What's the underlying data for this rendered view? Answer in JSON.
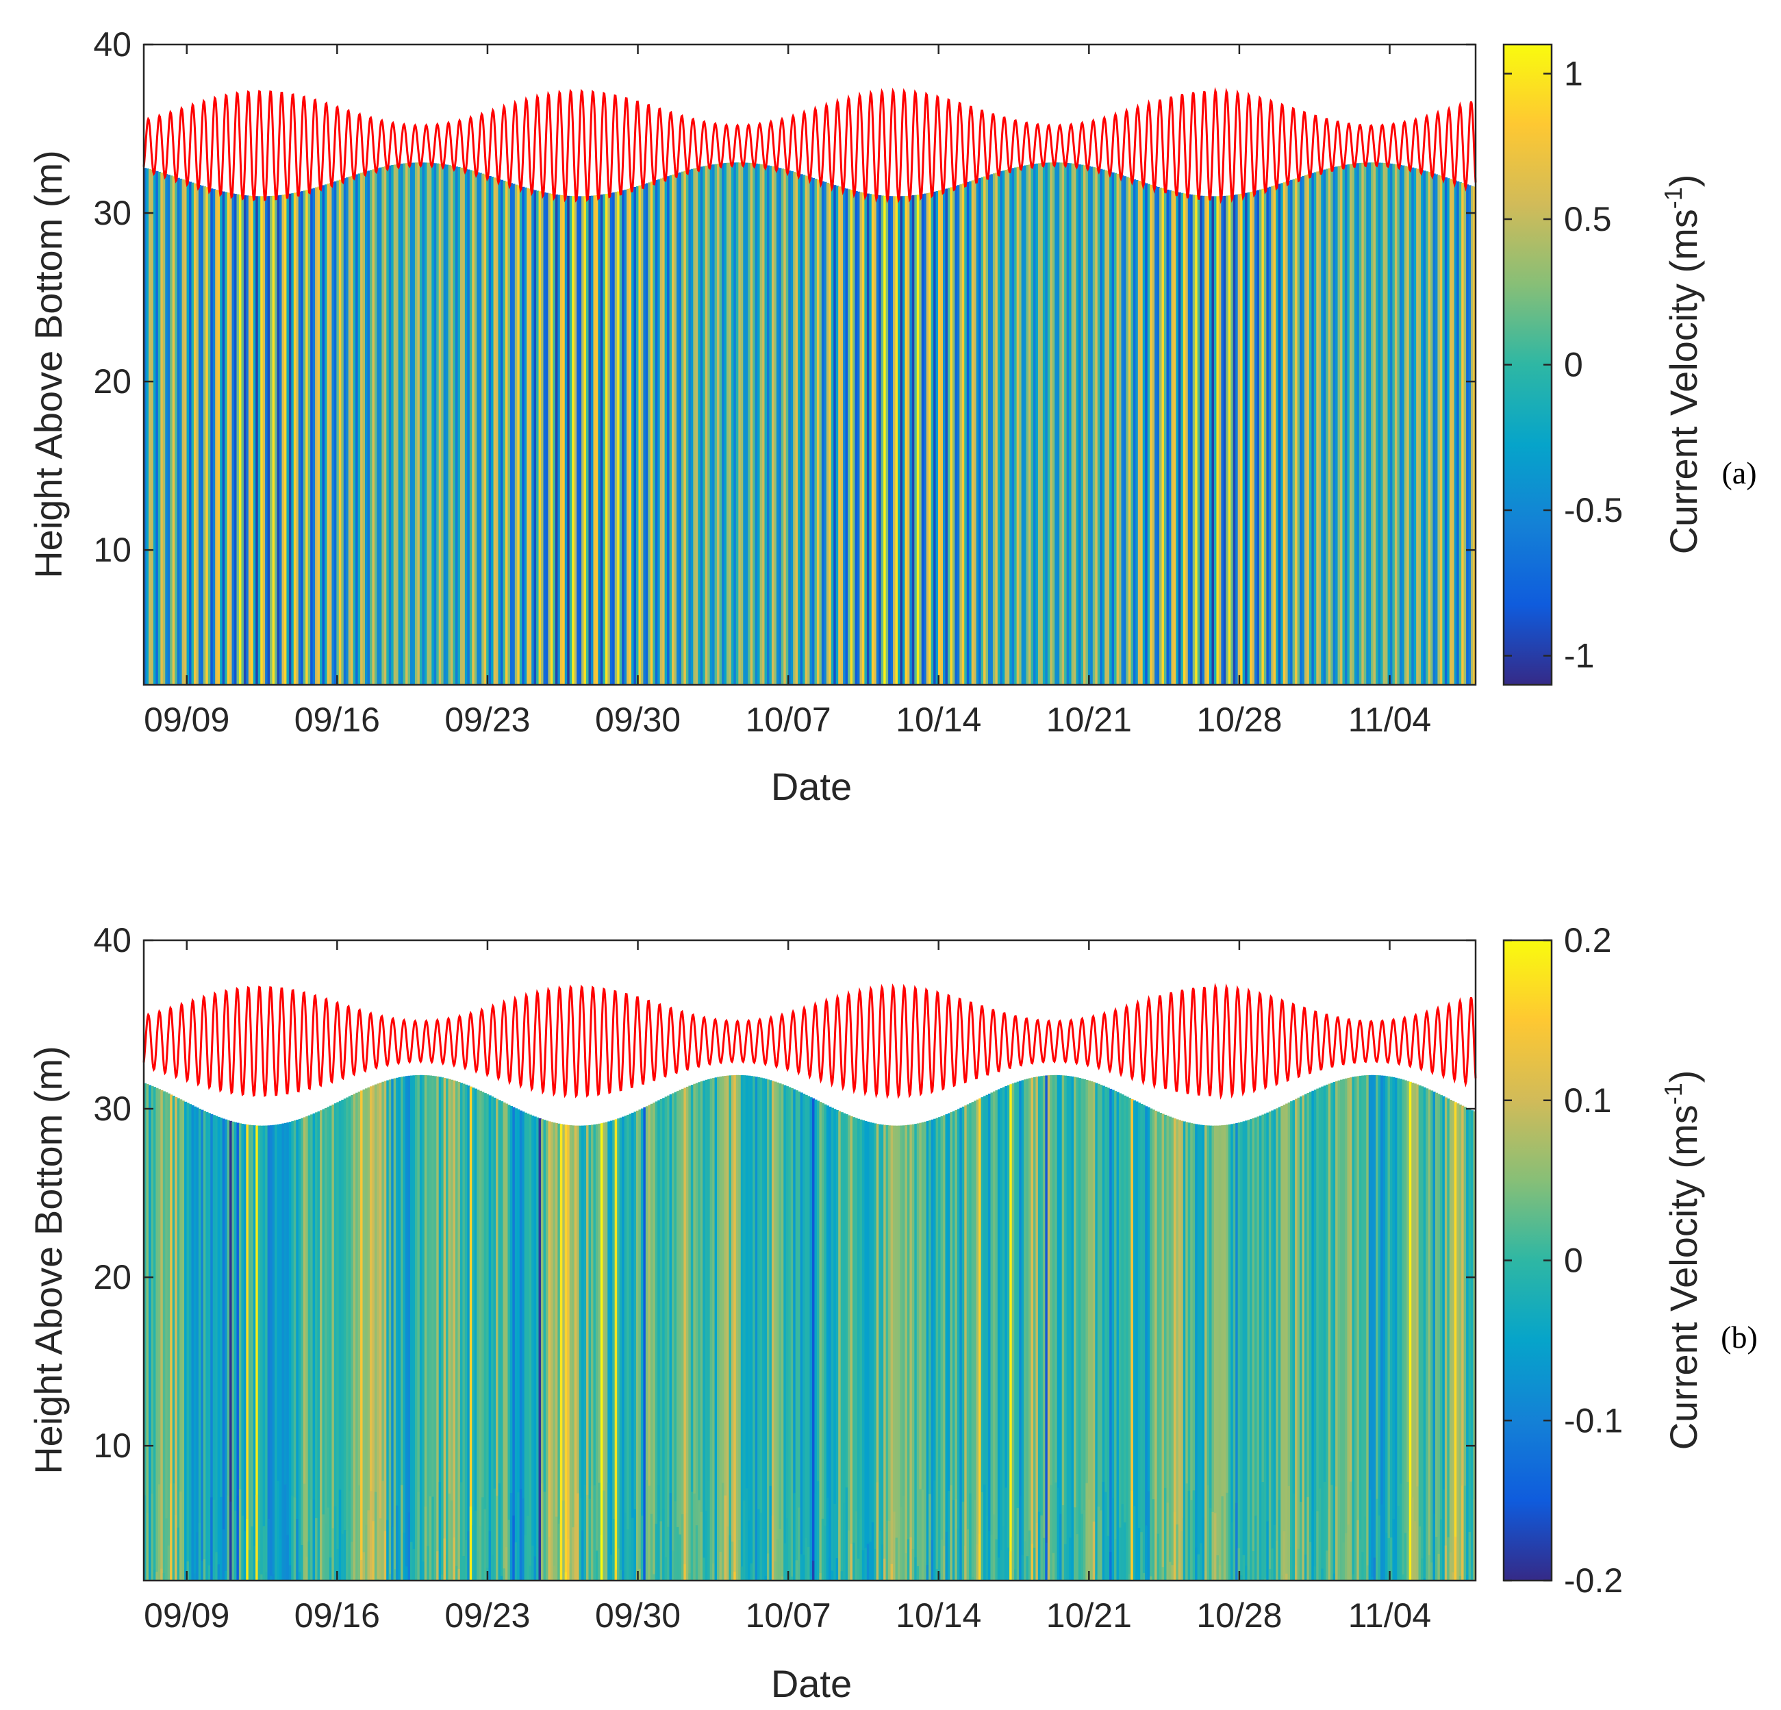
{
  "chart_data": [
    {
      "type": "heatmap",
      "panel_label": "(a)",
      "xlabel": "Date",
      "ylabel": "Height Above Bottom (m)",
      "xlim": [
        "09/07",
        "11/08"
      ],
      "ylim": [
        2,
        40
      ],
      "x_ticks": [
        "09/09",
        "09/16",
        "09/23",
        "09/30",
        "10/07",
        "10/14",
        "10/21",
        "10/28",
        "11/04"
      ],
      "y_ticks": [
        10,
        20,
        30,
        40
      ],
      "colorbar": {
        "label": "Current Velocity (ms",
        "label_superscript": "-1",
        "label_suffix": ")",
        "limits": [
          -1.1,
          1.1
        ],
        "ticks": [
          "-1",
          "-0.5",
          "0",
          "0.5",
          "1"
        ],
        "colormap": "parula"
      },
      "field": {
        "kind": "tidal",
        "amplitude_ms": 1.0,
        "period_hours": 12.42,
        "noise_ms": 0.05
      },
      "surface_line": {
        "color": "#ff0000",
        "mean_height_m": 34.0,
        "tidal_range_m": [
          2.4,
          6.5
        ],
        "spring_neap_period_days": 14.77
      },
      "bin_top_height_m": [
        33.0,
        31.0
      ]
    },
    {
      "type": "heatmap",
      "panel_label": "(b)",
      "xlabel": "Date",
      "ylabel": "Height Above Bottom (m)",
      "xlim": [
        "09/07",
        "11/08"
      ],
      "ylim": [
        2,
        40
      ],
      "x_ticks": [
        "09/09",
        "09/16",
        "09/23",
        "09/30",
        "10/07",
        "10/14",
        "10/21",
        "10/28",
        "11/04"
      ],
      "y_ticks": [
        10,
        20,
        30,
        40
      ],
      "colorbar": {
        "label": "Current Velocity (ms",
        "label_superscript": "-1",
        "label_suffix": ")",
        "limits": [
          -0.2,
          0.2
        ],
        "ticks": [
          "-0.2",
          "-0.1",
          "0",
          "0.1",
          "0.2"
        ],
        "colormap": "parula"
      },
      "field": {
        "kind": "residual",
        "amplitude_ms": 0.2,
        "noise_ms": 0.06
      },
      "surface_line": {
        "color": "#ff0000",
        "mean_height_m": 34.0,
        "tidal_range_m": [
          2.4,
          6.5
        ],
        "spring_neap_period_days": 14.77
      },
      "bin_top_height_m": [
        32.0,
        29.0
      ]
    }
  ],
  "colors": {
    "parula": [
      "#352a87",
      "#0f5cdd",
      "#1481d6",
      "#06a4ca",
      "#2eb7a4",
      "#87bf77",
      "#d1bb59",
      "#fec832",
      "#f9fb0e"
    ],
    "background": "#ffffff",
    "axis": "#262626"
  }
}
